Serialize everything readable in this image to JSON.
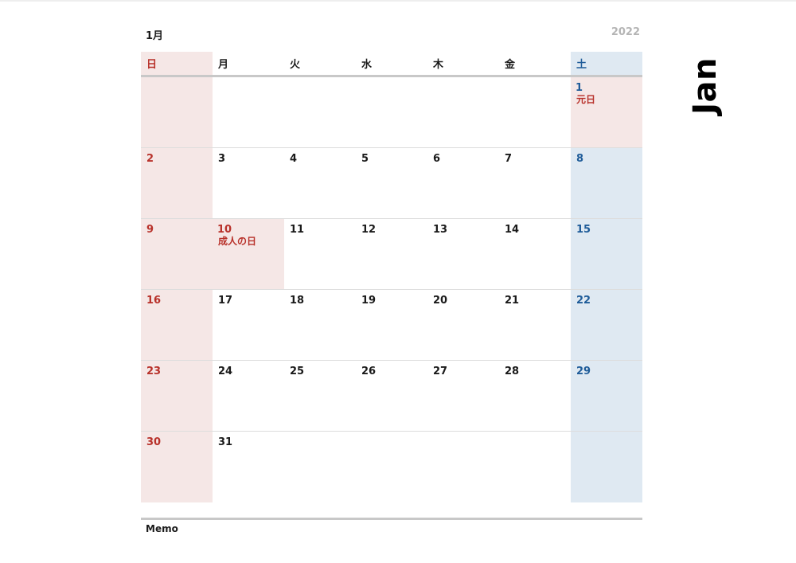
{
  "header": {
    "month_jp": "1月",
    "year": "2022",
    "month_en": "Jan"
  },
  "weekdays": [
    "日",
    "月",
    "火",
    "水",
    "木",
    "金",
    "土"
  ],
  "weeks": [
    [
      {
        "num": ""
      },
      {
        "num": ""
      },
      {
        "num": ""
      },
      {
        "num": ""
      },
      {
        "num": ""
      },
      {
        "num": ""
      },
      {
        "num": "1",
        "holiday": "元日"
      }
    ],
    [
      {
        "num": "2"
      },
      {
        "num": "3"
      },
      {
        "num": "4"
      },
      {
        "num": "5"
      },
      {
        "num": "6"
      },
      {
        "num": "7"
      },
      {
        "num": "8"
      }
    ],
    [
      {
        "num": "9"
      },
      {
        "num": "10",
        "holiday": "成人の日"
      },
      {
        "num": "11"
      },
      {
        "num": "12"
      },
      {
        "num": "13"
      },
      {
        "num": "14"
      },
      {
        "num": "15"
      }
    ],
    [
      {
        "num": "16"
      },
      {
        "num": "17"
      },
      {
        "num": "18"
      },
      {
        "num": "19"
      },
      {
        "num": "20"
      },
      {
        "num": "21"
      },
      {
        "num": "22"
      }
    ],
    [
      {
        "num": "23"
      },
      {
        "num": "24"
      },
      {
        "num": "25"
      },
      {
        "num": "26"
      },
      {
        "num": "27"
      },
      {
        "num": "28"
      },
      {
        "num": "29"
      }
    ],
    [
      {
        "num": "30"
      },
      {
        "num": "31"
      },
      {
        "num": ""
      },
      {
        "num": ""
      },
      {
        "num": ""
      },
      {
        "num": ""
      },
      {
        "num": ""
      }
    ]
  ],
  "memo_label": "Memo",
  "colors": {
    "sunday": "#b8312a",
    "saturday": "#1f5c99",
    "sunday_bg": "#f5e7e6",
    "saturday_bg": "#dfe9f2"
  }
}
